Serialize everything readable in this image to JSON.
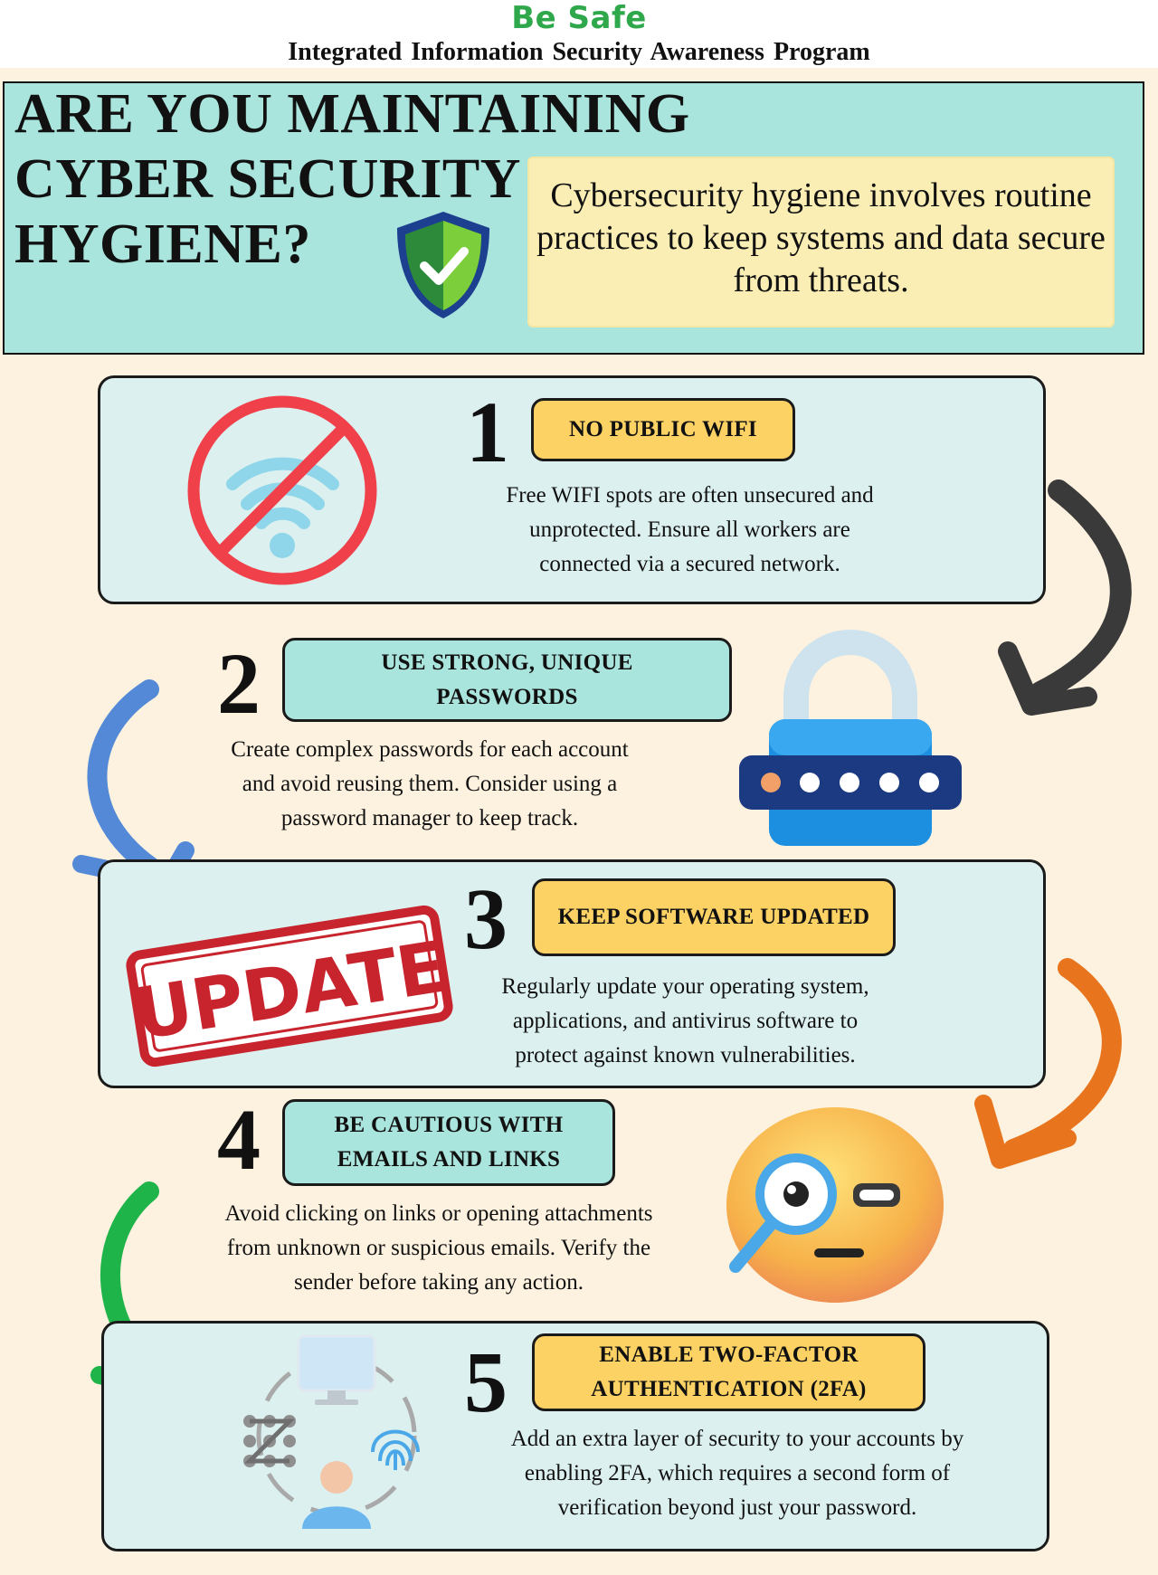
{
  "header": {
    "brand": "Be Safe",
    "program": "Integrated Information Security Awareness Program"
  },
  "hero": {
    "title_lines": [
      "ARE YOU MAINTAINING",
      "CYBER SECURITY",
      "HYGIENE?"
    ],
    "note": "Cybersecurity hygiene involves routine practices to keep systems and data secure from threats."
  },
  "steps": [
    {
      "number": "1",
      "title": "NO PUBLIC WIFI",
      "description_lines": [
        "Free WIFI spots are often unsecured and",
        "unprotected. Ensure all workers are",
        "connected via a secured network."
      ],
      "icon": "no-wifi-icon"
    },
    {
      "number": "2",
      "title_lines": [
        "USE STRONG, UNIQUE",
        "PASSWORDS"
      ],
      "description_lines": [
        "Create complex passwords for each account",
        "and avoid reusing them. Consider using a",
        "password manager to keep track."
      ],
      "icon": "padlock-password-icon"
    },
    {
      "number": "3",
      "title": "KEEP SOFTWARE UPDATED",
      "description_lines": [
        "Regularly update your operating system,",
        "applications, and antivirus software to",
        "protect against known vulnerabilities."
      ],
      "stamp_text": "UPDATE",
      "icon": "update-stamp-icon"
    },
    {
      "number": "4",
      "title_lines": [
        "BE CAUTIOUS WITH",
        "EMAILS AND LINKS"
      ],
      "description_lines": [
        "Avoid clicking on links or opening attachments",
        "from unknown or suspicious emails. Verify the",
        "sender before taking any action."
      ],
      "icon": "magnifier-face-icon"
    },
    {
      "number": "5",
      "title_lines": [
        "ENABLE TWO-FACTOR",
        "AUTHENTICATION (2FA)"
      ],
      "description_lines": [
        "Add an extra layer of security to your accounts by",
        "enabling 2FA, which requires a second form of",
        "verification beyond just your password."
      ],
      "icon": "two-factor-icon"
    }
  ],
  "colors": {
    "brand_green": "#2ea84b",
    "background": "#fdf2df",
    "hero": "#a9e4dd",
    "card": "#dbf0ef",
    "pill_yellow": "#fcd265",
    "arrow_dark": "#3a3a3a",
    "arrow_blue": "#5389d6",
    "arrow_orange": "#e8741d",
    "arrow_green": "#1fb44a"
  }
}
